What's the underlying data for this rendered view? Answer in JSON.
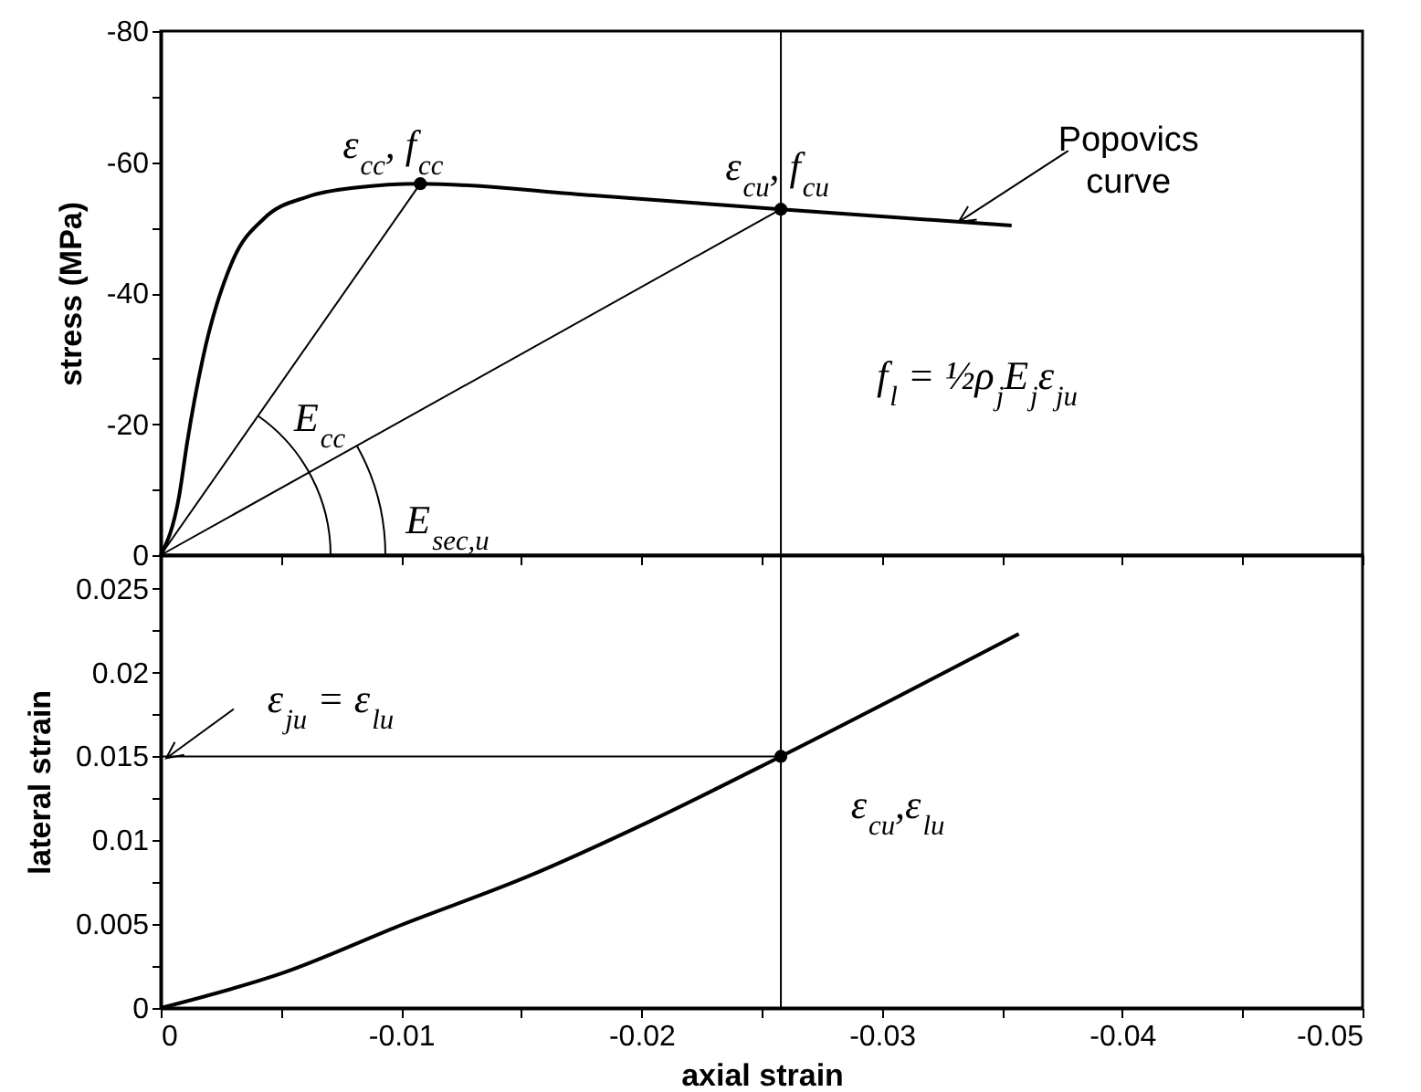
{
  "chart_data": [
    {
      "type": "line",
      "ylabel": "stress (MPa)",
      "xlim": [
        0,
        -0.05
      ],
      "xticks": [
        0,
        {
          "value": -0.005,
          "label": null
        },
        -0.01,
        {
          "value": -0.015,
          "label": null
        },
        -0.02,
        {
          "value": -0.025,
          "label": null
        },
        -0.03,
        {
          "value": -0.035,
          "label": null
        },
        -0.04,
        {
          "value": -0.045,
          "label": null
        },
        -0.05
      ],
      "ylim": [
        0,
        -80
      ],
      "yticks": [
        0,
        {
          "value": -10,
          "label": null
        },
        -20,
        {
          "value": -30,
          "label": null
        },
        -40,
        {
          "value": -50,
          "label": null
        },
        -60,
        {
          "value": -70,
          "label": null
        },
        -80
      ],
      "tick_labels": "y",
      "series": [
        {
          "name": "Popovics curve",
          "color": "#000000",
          "x": [
            0,
            -0.00076,
            -0.0011,
            -0.00175,
            -0.003,
            -0.0043,
            -0.0061,
            -0.0081,
            -0.0108,
            -0.018,
            -0.0258,
            -0.0354
          ],
          "values": [
            0,
            -8.9,
            -17.2,
            -30,
            -45,
            -51.4,
            -54.7,
            -56.1,
            -56.7,
            -54.9,
            -52.8,
            -50.3
          ]
        },
        {
          "color": "#000000",
          "x": [
            0,
            -0.0108
          ],
          "values": [
            0,
            -56.7
          ]
        },
        {
          "color": "#000000",
          "x": [
            0,
            -0.0258
          ],
          "values": [
            0,
            -52.8
          ]
        },
        {
          "type": "scatter",
          "color": "#000000",
          "marker": "circle",
          "x": [
            -0.0108,
            -0.0258
          ],
          "values": [
            -56.7,
            -52.8
          ]
        }
      ],
      "ref_lines": [
        {
          "axis": "x",
          "value": -0.0258,
          "color": "#000000"
        }
      ],
      "annotations": [
        {
          "text": "ε$_{cc}$, f$_{cc}$",
          "x": -0.0108,
          "y": -56.7
        },
        {
          "text": "ε$_{cu}$, f$_{cu}$",
          "x": -0.0258,
          "y": -52.8
        },
        "E$_{cc}$",
        "E$_{sec,u}$",
        "f$_{l}$  = ½ρ$_{j}$E$_{j}$ε$_{ju}$"
      ]
    },
    {
      "type": "line",
      "xlabel": "axial strain",
      "ylabel": "lateral strain",
      "xlim": [
        0,
        -0.05
      ],
      "xticks": [
        0,
        {
          "value": -0.005,
          "label": null
        },
        -0.01,
        {
          "value": -0.015,
          "label": null
        },
        -0.02,
        {
          "value": -0.025,
          "label": null
        },
        -0.03,
        {
          "value": -0.035,
          "label": null
        },
        -0.04,
        {
          "value": -0.045,
          "label": null
        },
        -0.05
      ],
      "ylim": [
        0,
        0.027
      ],
      "yticks": [
        0,
        {
          "value": 0.0025,
          "label": null
        },
        0.005,
        {
          "value": 0.0075,
          "label": null
        },
        0.01,
        {
          "value": 0.0125,
          "label": null
        },
        0.015,
        {
          "value": 0.0175,
          "label": null
        },
        0.02,
        {
          "value": 0.0225,
          "label": null
        },
        0.025
      ],
      "series": [
        {
          "color": "#000000",
          "x": [
            0,
            -0.0051,
            -0.0101,
            -0.0152,
            -0.0203,
            -0.0258,
            -0.0357
          ],
          "values": [
            0,
            0.0021,
            0.005,
            0.0078,
            0.0111,
            0.015,
            0.0223
          ]
        },
        {
          "color": "#000000",
          "x": [
            0,
            -0.0258
          ],
          "values": [
            0.015,
            0.015
          ]
        },
        {
          "type": "scatter",
          "color": "#000000",
          "marker": "circle",
          "x": [
            -0.0258
          ],
          "values": [
            0.015
          ]
        }
      ],
      "ref_lines": [
        {
          "axis": "x",
          "value": -0.0258,
          "color": "#000000"
        }
      ],
      "annotations": [
        {
          "text": "ε$_{ju}$ = ε$_{lu}$",
          "x": 0,
          "y": 0.015
        },
        {
          "text": "ε$_{cu}$,ε$_{lu}$",
          "x": -0.0258,
          "y": 0.015
        }
      ]
    }
  ]
}
